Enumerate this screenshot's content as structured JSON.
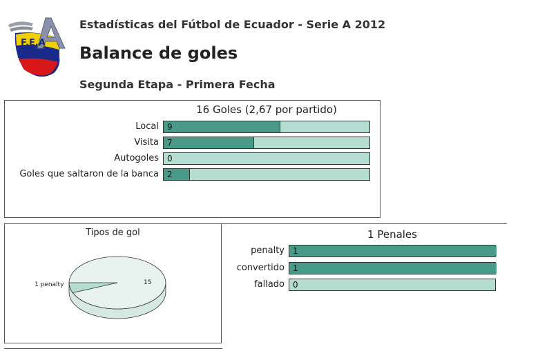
{
  "header": {
    "logo_text": "F.E.A",
    "title": "Estadísticas del Fútbol de Ecuador - Serie A 2012",
    "main_title": "Balance de goles",
    "subtitle": "Segunda Etapa - Primera Fecha"
  },
  "colors": {
    "bar_fill": "#4a9a8a",
    "bar_track": "#b5ddd2",
    "pie_top": "#e8f3ef",
    "pie_slice": "#b5ddd2"
  },
  "chart_data": [
    {
      "type": "bar",
      "title": "16 Goles (2,67 por partido)",
      "categories": [
        "Local",
        "Visita",
        "Autogoles",
        "Goles que saltaron de la banca"
      ],
      "values": [
        9,
        7,
        0,
        2
      ],
      "xlim": [
        0,
        16
      ]
    },
    {
      "type": "pie",
      "title": "Tipos de gol",
      "slices": [
        {
          "label": "1 penalty",
          "value": 1
        },
        {
          "label": "15",
          "value": 15
        }
      ]
    },
    {
      "type": "bar",
      "title": "1 Penales",
      "categories": [
        "penalty",
        "convertido",
        "fallado"
      ],
      "values": [
        1,
        1,
        0
      ],
      "xlim": [
        0,
        1
      ]
    }
  ]
}
